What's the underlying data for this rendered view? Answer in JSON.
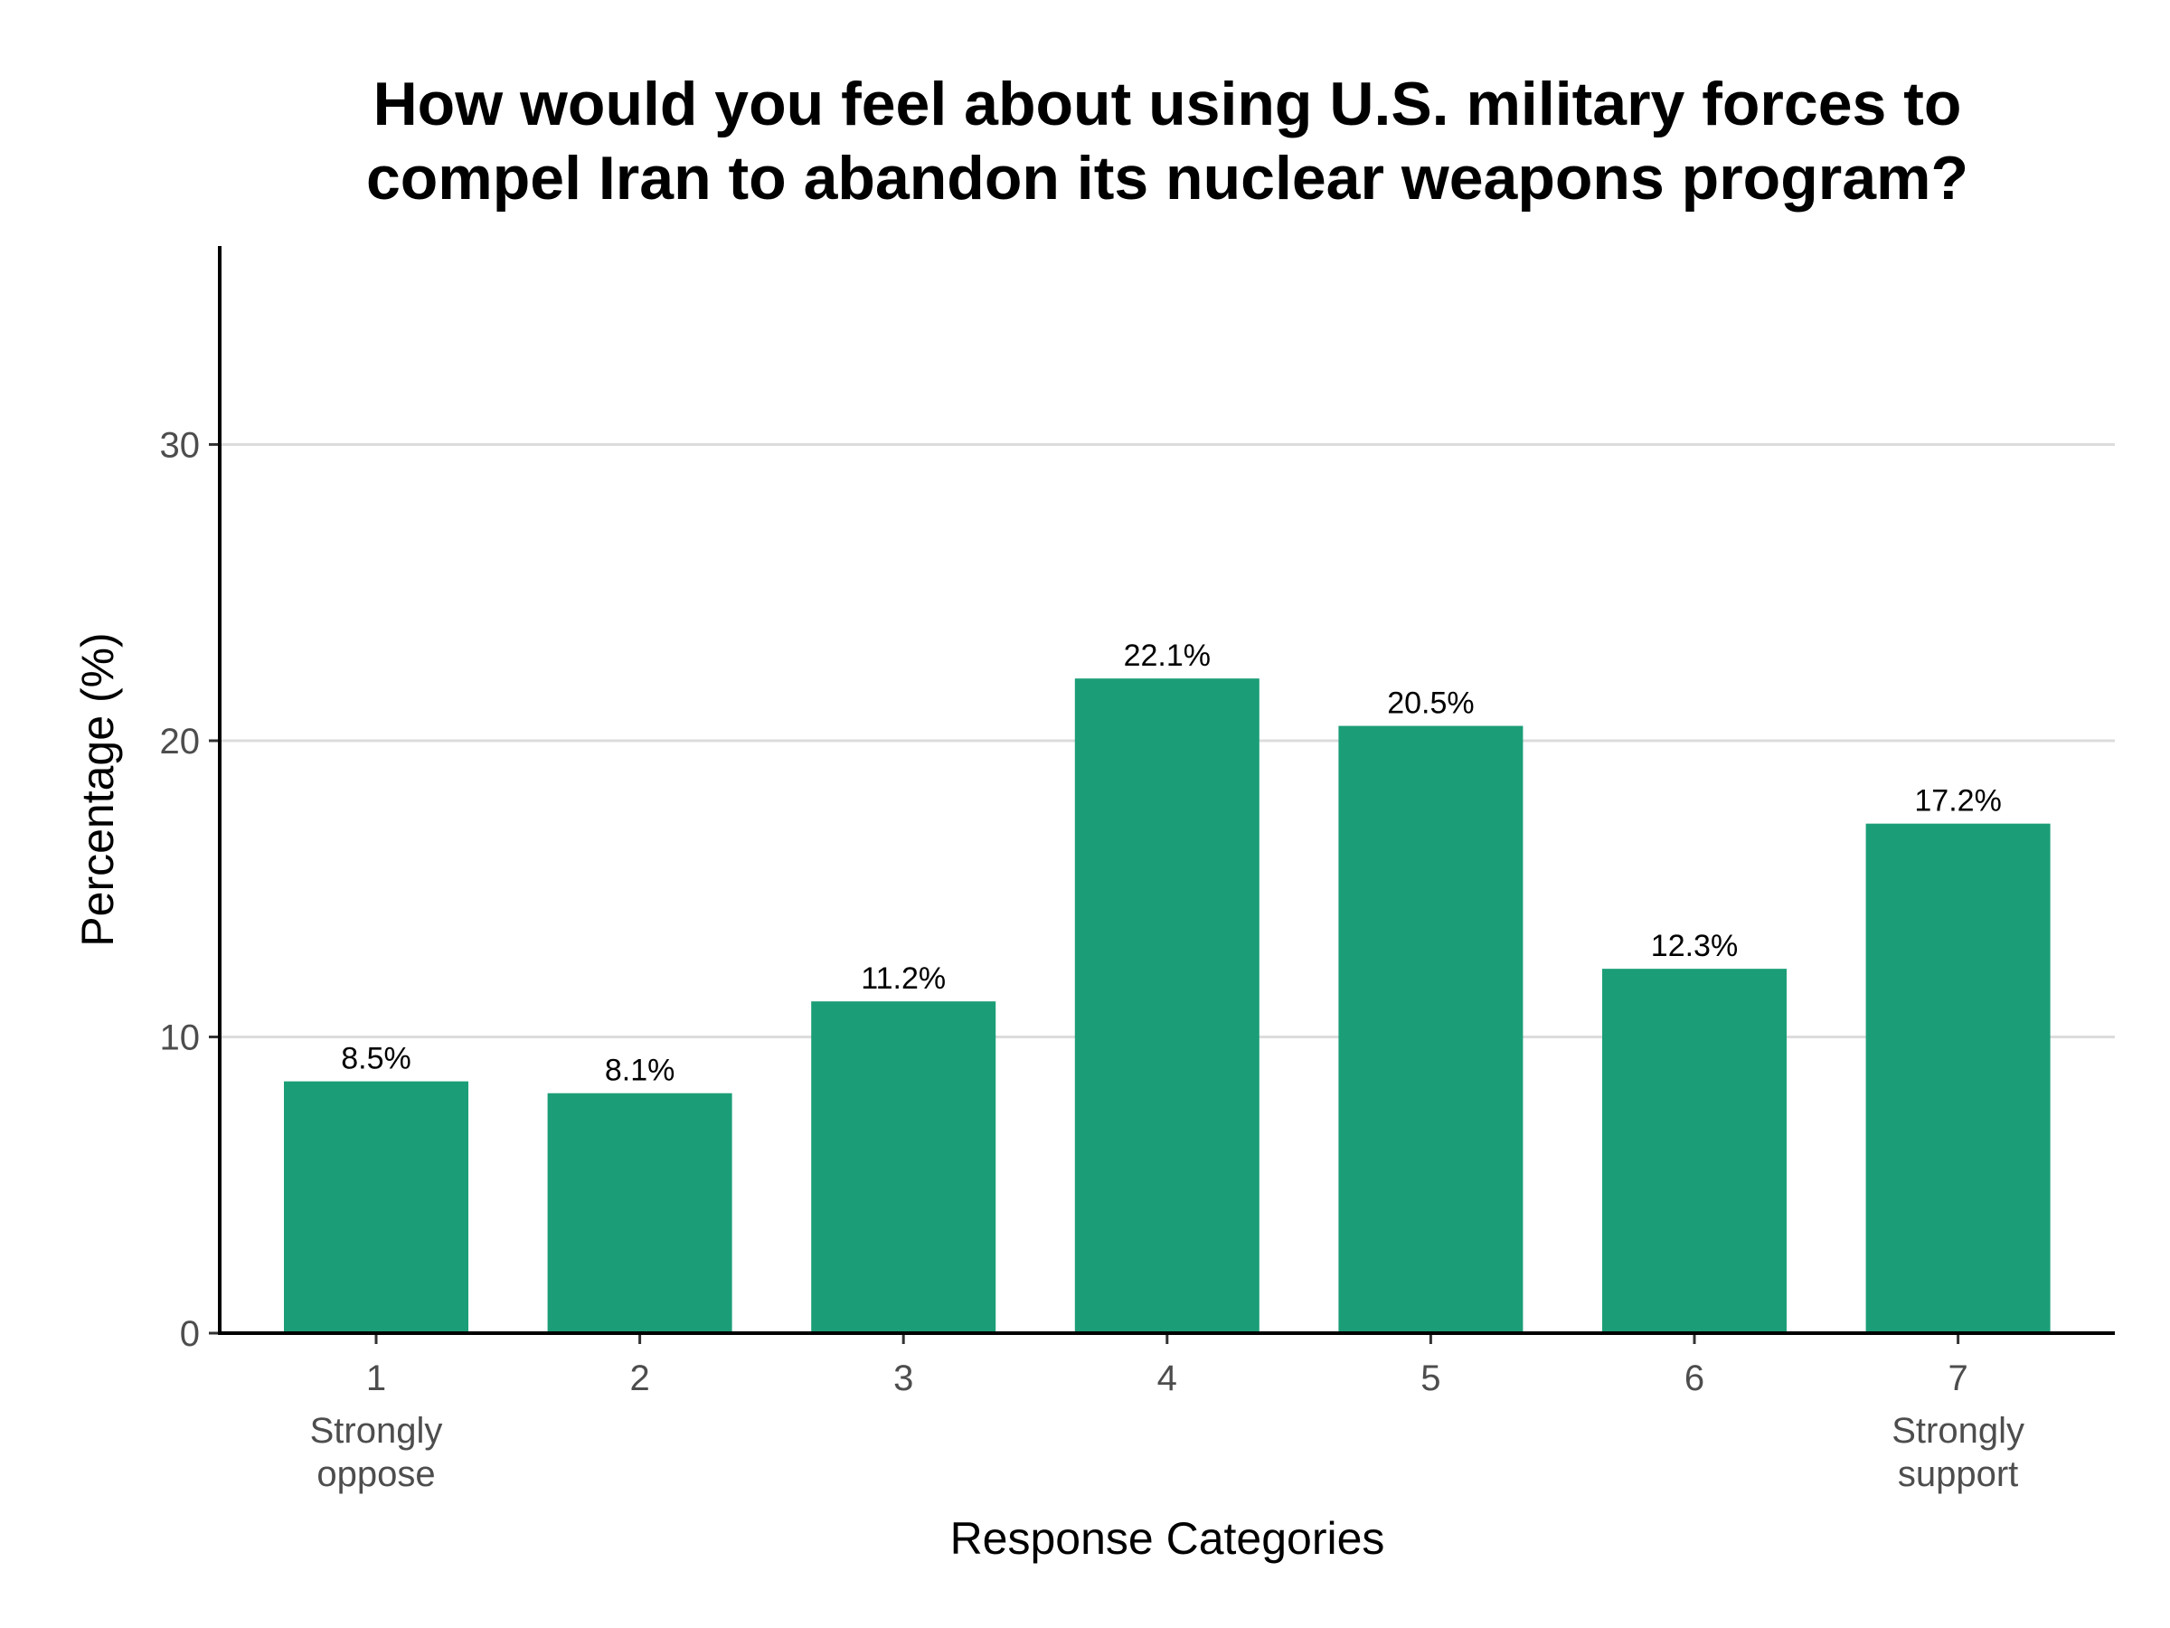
{
  "chart_data": {
    "type": "bar",
    "title": [
      "How would you feel about using U.S. military forces to",
      "compel Iran to abandon its nuclear weapons program?"
    ],
    "xlabel": "Response Categories",
    "ylabel": "Percentage (%)",
    "categories": [
      "1",
      "2",
      "3",
      "4",
      "5",
      "6",
      "7"
    ],
    "category_sublabels": [
      [
        "Strongly",
        "oppose"
      ],
      [],
      [],
      [],
      [],
      [],
      [
        "Strongly",
        "support"
      ]
    ],
    "values": [
      8.5,
      8.1,
      11.2,
      22.1,
      20.5,
      12.3,
      17.2
    ],
    "data_labels": [
      "8.5%",
      "8.1%",
      "11.2%",
      "22.1%",
      "20.5%",
      "12.3%",
      "17.2%"
    ],
    "yticks": [
      0,
      10,
      20,
      30
    ],
    "ylim": [
      0,
      36.7
    ],
    "grid": "horizontal major",
    "bar_color": "#1b9e77"
  }
}
